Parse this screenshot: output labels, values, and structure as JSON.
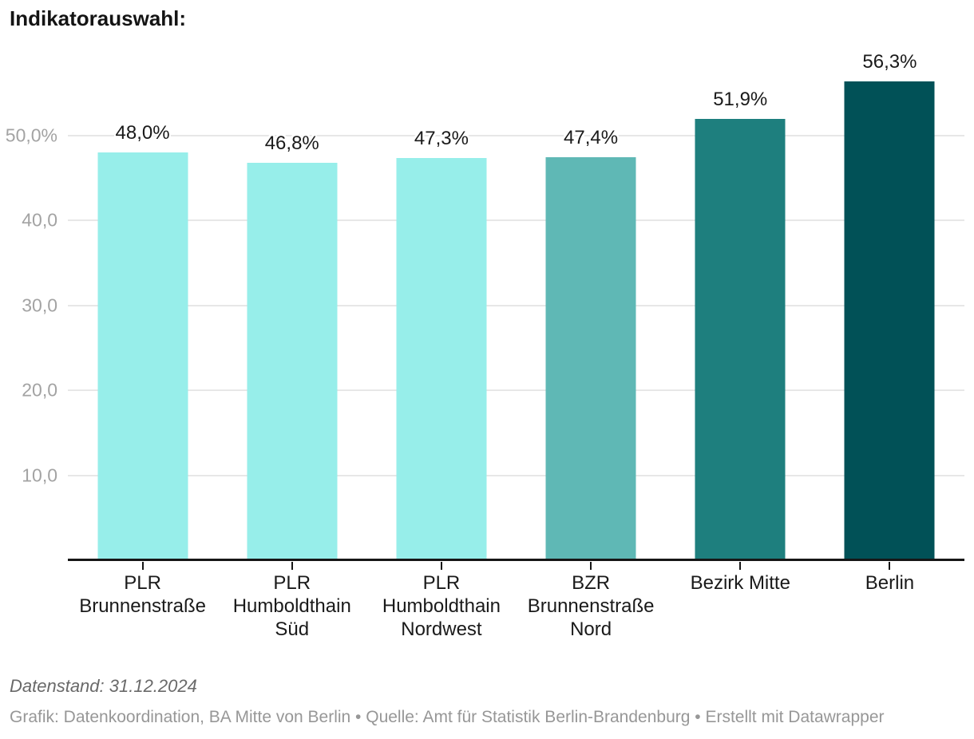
{
  "chart_data": {
    "type": "bar",
    "title": "Indikatorauswahl:",
    "categories": [
      "PLR Brunnenstraße",
      "PLR Humboldthain Süd",
      "PLR Humboldthain Nordwest",
      "BZR Brunnenstraße Nord",
      "Bezirk Mitte",
      "Berlin"
    ],
    "values": [
      48.0,
      46.8,
      47.3,
      47.4,
      51.9,
      56.3
    ],
    "value_labels": [
      "48,0%",
      "46,8%",
      "47,3%",
      "47,4%",
      "51,9%",
      "56,3%"
    ],
    "bar_colors": [
      "#97EEEA",
      "#97EEEA",
      "#97EEEA",
      "#5FB8B5",
      "#1E7F7E",
      "#015157"
    ],
    "unit": "%",
    "xlabel": "",
    "ylabel": "",
    "ylim": [
      0,
      60
    ],
    "grid": true,
    "legend_position": "none",
    "y_ticks": [
      {
        "value": 50,
        "label": "50,0%"
      },
      {
        "value": 40,
        "label": "40,0"
      },
      {
        "value": 30,
        "label": "30,0"
      },
      {
        "value": 20,
        "label": "20,0"
      },
      {
        "value": 10,
        "label": "10,0"
      }
    ]
  },
  "footer": {
    "datenstand": "Datenstand: 31.12.2024",
    "credits": "Grafik: Datenkoordination, BA Mitte von Berlin • Quelle: Amt für Statistik Berlin-Brandenburg • Erstellt mit Datawrapper"
  },
  "colors": {
    "gridline": "#e7e7e7",
    "axis": "#161616",
    "y_tick_text": "#a3a3a3",
    "label_text": "#1a1a1a",
    "datenstand_text": "#696969",
    "credits_text": "#979797"
  }
}
